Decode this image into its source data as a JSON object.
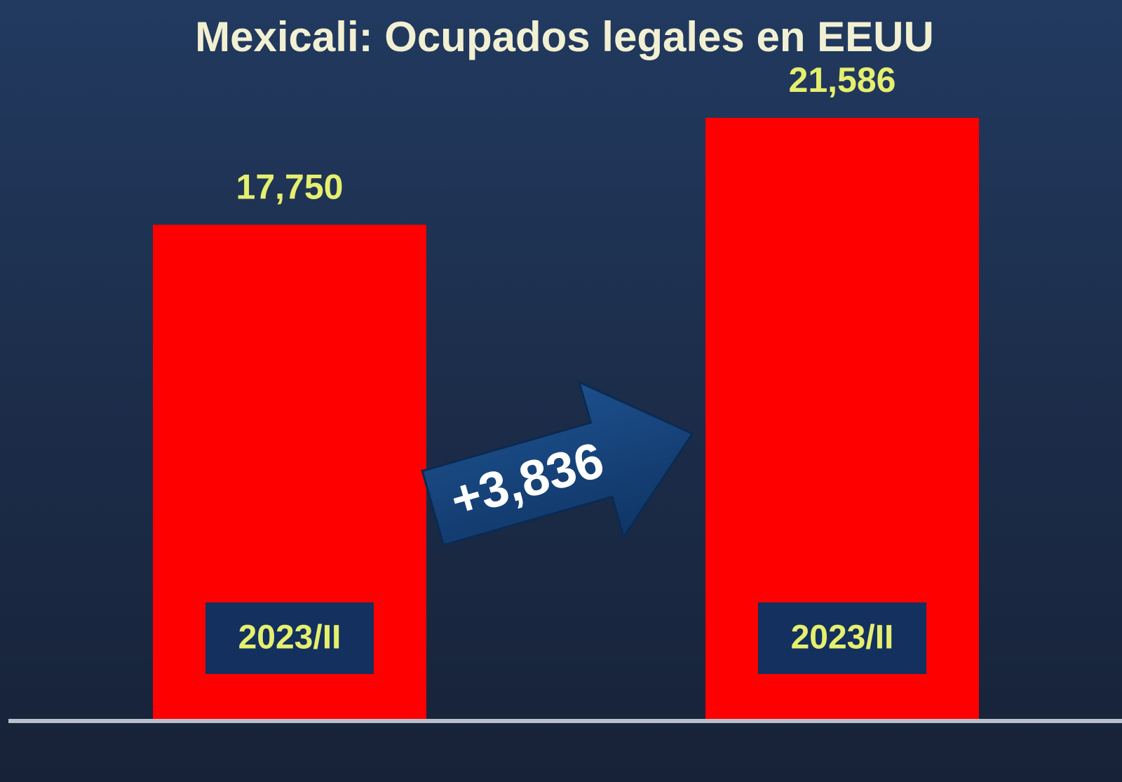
{
  "chart_data": {
    "type": "bar",
    "title": "Mexicali: Ocupados legales en EEUU",
    "categories": [
      "2023/II",
      "2023/II"
    ],
    "values": [
      17750,
      21586
    ],
    "value_labels": [
      "17,750",
      "21,586"
    ],
    "color": "#ff0000",
    "annotations": [
      "+3,836"
    ]
  }
}
